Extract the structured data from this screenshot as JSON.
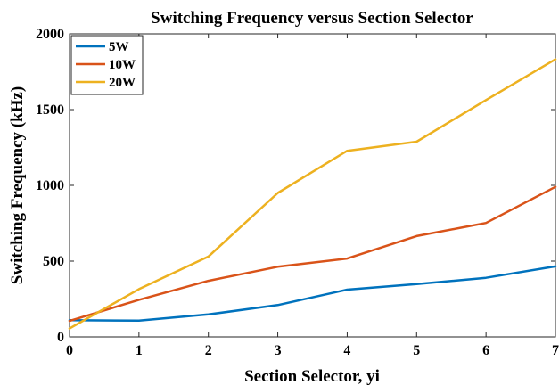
{
  "chart_data": {
    "type": "line",
    "title": "Switching Frequency versus Section Selector",
    "xlabel": "Section Selector, yi",
    "ylabel": "Switching Frequency (kHz)",
    "xlim": [
      0,
      7
    ],
    "ylim": [
      0,
      2000
    ],
    "x_ticks": [
      0,
      1,
      2,
      3,
      4,
      5,
      6,
      7
    ],
    "y_ticks": [
      0,
      500,
      1000,
      1500,
      2000
    ],
    "grid": false,
    "legend_position": "top-left",
    "x": [
      0,
      1,
      2,
      3,
      4,
      5,
      6,
      7
    ],
    "series": [
      {
        "name": "5W",
        "color": "#0072BD",
        "values": [
          110,
          107,
          148,
          210,
          312,
          348,
          390,
          465
        ]
      },
      {
        "name": "10W",
        "color": "#D95319",
        "values": [
          105,
          245,
          370,
          463,
          517,
          665,
          752,
          990
        ]
      },
      {
        "name": "20W",
        "color": "#EDB120",
        "values": [
          55,
          315,
          530,
          950,
          1228,
          1288,
          1563,
          1832
        ]
      }
    ]
  }
}
